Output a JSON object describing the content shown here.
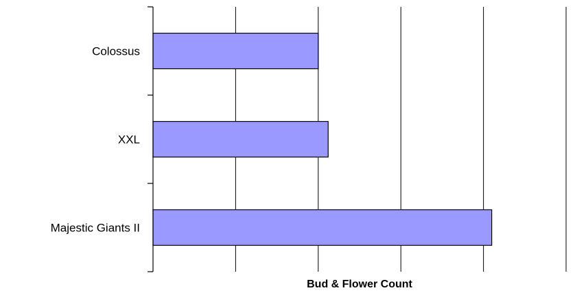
{
  "chart_data": {
    "type": "bar",
    "orientation": "horizontal",
    "categories": [
      "Colossus",
      "XXL",
      "Majestic Giants II"
    ],
    "values": [
      2,
      2.12,
      4.1
    ],
    "title": "",
    "xlabel": "Bud & Flower Count",
    "ylabel": "",
    "xlim": [
      0,
      5
    ],
    "x_ticks_labeled": false,
    "grid": {
      "x": true,
      "y": false
    },
    "legend": "none",
    "colors": {
      "bar_fill": "#9999ff",
      "bar_stroke": "#000000",
      "grid": "#000000",
      "axis": "#000000"
    }
  }
}
